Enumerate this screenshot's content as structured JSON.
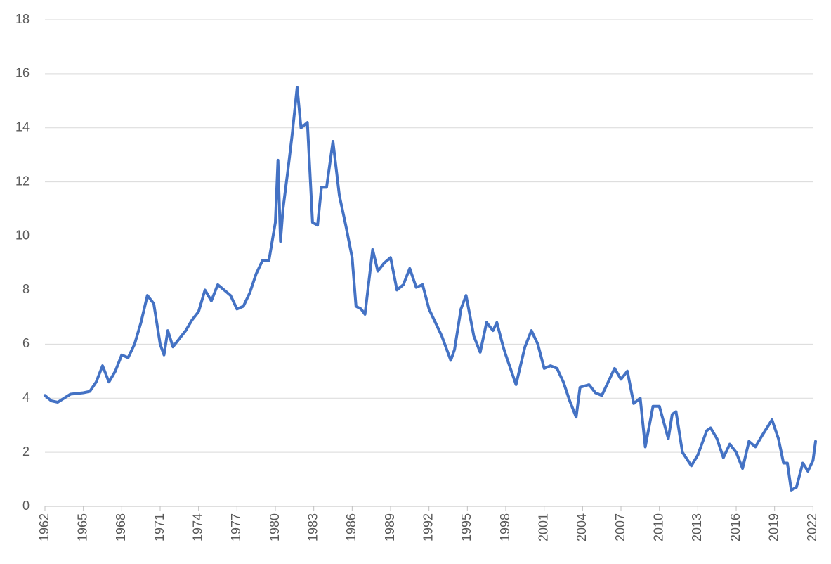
{
  "chart_data": {
    "type": "line",
    "x": [
      1962,
      1962.5,
      1963,
      1963.5,
      1964,
      1965,
      1965.5,
      1966,
      1966.5,
      1967,
      1967.5,
      1968,
      1968.5,
      1969,
      1969.5,
      1970,
      1970.5,
      1971,
      1971.3,
      1971.6,
      1972,
      1972.5,
      1973,
      1973.5,
      1974,
      1974.5,
      1975,
      1975.5,
      1976,
      1976.5,
      1977,
      1977.5,
      1978,
      1978.5,
      1979,
      1979.5,
      1980,
      1980.2,
      1980.4,
      1980.6,
      1981,
      1981.3,
      1981.7,
      1982,
      1982.5,
      1982.9,
      1983.3,
      1983.6,
      1984,
      1984.5,
      1985,
      1985.5,
      1986,
      1986.3,
      1986.7,
      1987,
      1987.6,
      1988,
      1988.5,
      1989,
      1989.5,
      1990,
      1990.5,
      1991,
      1991.5,
      1992,
      1992.5,
      1993,
      1993.7,
      1994,
      1994.5,
      1994.9,
      1995.5,
      1996,
      1996.5,
      1997,
      1997.3,
      1997.8,
      1998,
      1998.8,
      1999,
      1999.5,
      2000,
      2000.5,
      2001,
      2001.5,
      2002,
      2002.5,
      2003,
      2003.5,
      2003.8,
      2004.5,
      2005,
      2005.5,
      2006,
      2006.5,
      2007,
      2007.5,
      2008,
      2008.5,
      2008.9,
      2009.5,
      2010,
      2010.7,
      2011,
      2011.3,
      2011.8,
      2012.5,
      2013,
      2013.7,
      2014,
      2014.5,
      2015,
      2015.5,
      2016,
      2016.5,
      2017,
      2017.5,
      2018,
      2018.8,
      2019.3,
      2019.7,
      2020,
      2020.3,
      2020.7,
      2021.2,
      2021.6,
      2022,
      2022.2
    ],
    "values": [
      4.1,
      3.9,
      3.85,
      4.0,
      4.15,
      4.2,
      4.25,
      4.6,
      5.2,
      4.6,
      5.0,
      5.6,
      5.5,
      6.0,
      6.8,
      7.8,
      7.5,
      6.0,
      5.6,
      6.5,
      5.9,
      6.2,
      6.5,
      6.9,
      7.2,
      8.0,
      7.6,
      8.2,
      8.0,
      7.8,
      7.3,
      7.4,
      7.9,
      8.6,
      9.1,
      9.1,
      10.5,
      12.8,
      9.8,
      11.0,
      12.5,
      13.7,
      15.5,
      14.0,
      14.2,
      10.5,
      10.4,
      11.8,
      11.8,
      13.5,
      11.5,
      10.4,
      9.2,
      7.4,
      7.3,
      7.1,
      9.5,
      8.7,
      9.0,
      9.2,
      8.0,
      8.2,
      8.8,
      8.1,
      8.2,
      7.3,
      6.8,
      6.3,
      5.4,
      5.8,
      7.3,
      7.8,
      6.3,
      5.7,
      6.8,
      6.5,
      6.8,
      5.9,
      5.6,
      4.5,
      4.9,
      5.9,
      6.5,
      6.0,
      5.1,
      5.2,
      5.1,
      4.6,
      3.9,
      3.3,
      4.4,
      4.5,
      4.2,
      4.1,
      4.6,
      5.1,
      4.7,
      5.0,
      3.8,
      4.0,
      2.2,
      3.7,
      3.7,
      2.5,
      3.4,
      3.5,
      2.0,
      1.5,
      1.9,
      2.8,
      2.9,
      2.5,
      1.8,
      2.3,
      2.0,
      1.4,
      2.4,
      2.2,
      2.6,
      3.2,
      2.5,
      1.6,
      1.6,
      0.6,
      0.7,
      1.6,
      1.3,
      1.7,
      2.4
    ],
    "color": "#4472c4",
    "xlim": [
      1962,
      2022.2
    ],
    "xticks": [
      1962,
      1965,
      1968,
      1971,
      1974,
      1977,
      1980,
      1983,
      1986,
      1989,
      1992,
      1995,
      1998,
      2001,
      2004,
      2007,
      2010,
      2013,
      2016,
      2019,
      2022
    ],
    "ylim": [
      0,
      18
    ],
    "yticks": [
      0,
      2,
      4,
      6,
      8,
      10,
      12,
      14,
      16,
      18
    ],
    "grid": true
  }
}
